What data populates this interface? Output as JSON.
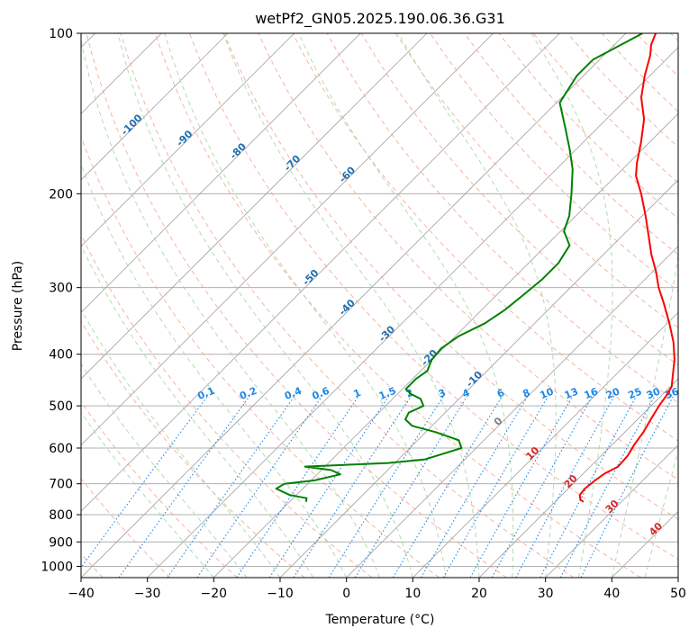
{
  "chart_data": {
    "type": "line",
    "subtype": "skew-T log-P",
    "title": "wetPf2_GN05.2025.190.06.36.G31",
    "xlabel": "Temperature (°C)",
    "ylabel": "Pressure (hPa)",
    "xlim": [
      -40,
      50
    ],
    "ylim": [
      1050,
      100
    ],
    "yscale": "log",
    "x_ticks": [
      -40,
      -30,
      -20,
      -10,
      0,
      10,
      20,
      30,
      40,
      50
    ],
    "y_ticks": [
      100,
      200,
      300,
      400,
      500,
      600,
      700,
      800,
      900,
      1000
    ],
    "grid": true,
    "series": [
      {
        "color": "#ff0000",
        "points": [
          {
            "p": 757,
            "t": 24.3
          },
          {
            "p": 750,
            "t": 23.5
          },
          {
            "p": 735,
            "t": 22.7
          },
          {
            "p": 715,
            "t": 22.5
          },
          {
            "p": 690,
            "t": 22.8
          },
          {
            "p": 670,
            "t": 23.2
          },
          {
            "p": 650,
            "t": 24.2
          },
          {
            "p": 620,
            "t": 24.0
          },
          {
            "p": 590,
            "t": 23.3
          },
          {
            "p": 560,
            "t": 22.8
          },
          {
            "p": 530,
            "t": 22.0
          },
          {
            "p": 500,
            "t": 21.2
          },
          {
            "p": 480,
            "t": 20.8
          },
          {
            "p": 460,
            "t": 20.2
          },
          {
            "p": 440,
            "t": 18.8
          },
          {
            "p": 410,
            "t": 16.6
          },
          {
            "p": 380,
            "t": 13.8
          },
          {
            "p": 350,
            "t": 10.3
          },
          {
            "p": 320,
            "t": 6.3
          },
          {
            "p": 300,
            "t": 3.3
          },
          {
            "p": 280,
            "t": 0.5
          },
          {
            "p": 260,
            "t": -2.8
          },
          {
            "p": 240,
            "t": -6.0
          },
          {
            "p": 220,
            "t": -9.5
          },
          {
            "p": 200,
            "t": -13.5
          },
          {
            "p": 185,
            "t": -17.0
          },
          {
            "p": 175,
            "t": -18.8
          },
          {
            "p": 160,
            "t": -21.3
          },
          {
            "p": 145,
            "t": -24.3
          },
          {
            "p": 132,
            "t": -28.0
          },
          {
            "p": 120,
            "t": -30.8
          },
          {
            "p": 110,
            "t": -33.0
          },
          {
            "p": 105,
            "t": -34.5
          },
          {
            "p": 100,
            "t": -35.5
          }
        ]
      },
      {
        "color": "#008000",
        "points": [
          {
            "p": 757,
            "t": -17.5
          },
          {
            "p": 745,
            "t": -18.0
          },
          {
            "p": 735,
            "t": -21.0
          },
          {
            "p": 715,
            "t": -24.0
          },
          {
            "p": 700,
            "t": -23.5
          },
          {
            "p": 690,
            "t": -19.5
          },
          {
            "p": 672,
            "t": -16.5
          },
          {
            "p": 660,
            "t": -18.5
          },
          {
            "p": 650,
            "t": -23.0
          },
          {
            "p": 640,
            "t": -11.0
          },
          {
            "p": 630,
            "t": -6.0
          },
          {
            "p": 600,
            "t": -2.2
          },
          {
            "p": 580,
            "t": -3.8
          },
          {
            "p": 560,
            "t": -8.5
          },
          {
            "p": 545,
            "t": -13.0
          },
          {
            "p": 530,
            "t": -15.0
          },
          {
            "p": 515,
            "t": -15.5
          },
          {
            "p": 500,
            "t": -14.3
          },
          {
            "p": 485,
            "t": -15.8
          },
          {
            "p": 475,
            "t": -18.0
          },
          {
            "p": 465,
            "t": -19.5
          },
          {
            "p": 445,
            "t": -19.5
          },
          {
            "p": 430,
            "t": -19.0
          },
          {
            "p": 410,
            "t": -20.0
          },
          {
            "p": 390,
            "t": -20.3
          },
          {
            "p": 370,
            "t": -19.5
          },
          {
            "p": 350,
            "t": -17.5
          },
          {
            "p": 330,
            "t": -16.5
          },
          {
            "p": 310,
            "t": -16.0
          },
          {
            "p": 290,
            "t": -15.5
          },
          {
            "p": 270,
            "t": -15.5
          },
          {
            "p": 250,
            "t": -16.5
          },
          {
            "p": 235,
            "t": -19.5
          },
          {
            "p": 220,
            "t": -21.0
          },
          {
            "p": 200,
            "t": -24.0
          },
          {
            "p": 180,
            "t": -27.5
          },
          {
            "p": 165,
            "t": -31.0
          },
          {
            "p": 150,
            "t": -35.0
          },
          {
            "p": 135,
            "t": -39.5
          },
          {
            "p": 120,
            "t": -41.0
          },
          {
            "p": 112,
            "t": -41.0
          },
          {
            "p": 105,
            "t": -39.0
          },
          {
            "p": 100,
            "t": -37.5
          }
        ]
      }
    ],
    "dry_adiabat_labels": [
      -100,
      -90,
      -80,
      -70,
      -60,
      -50,
      -40,
      -30,
      -20,
      -10,
      0,
      10,
      20,
      30,
      40
    ],
    "mixing_ratio_labels": [
      "0.1",
      "0.2",
      "0.4",
      "0.6",
      "1",
      "1.5",
      "2",
      "3",
      "4",
      "6",
      "8",
      "10",
      "13",
      "16",
      "20",
      "25",
      "30",
      "36"
    ],
    "colors": {
      "temperature": "#ff0000",
      "dewpoint": "#008000",
      "isotherm": "#a0a0a0",
      "isobar": "#b0b0b0",
      "dry_adiabat": "#f5a08a",
      "moist_adiabat": "#a8d8a8",
      "mixing_ratio": "#1e88e5",
      "dry_label_cold": "#1f6fb0",
      "dry_label_warm": "#d62728",
      "zero_label": "#808080"
    }
  }
}
